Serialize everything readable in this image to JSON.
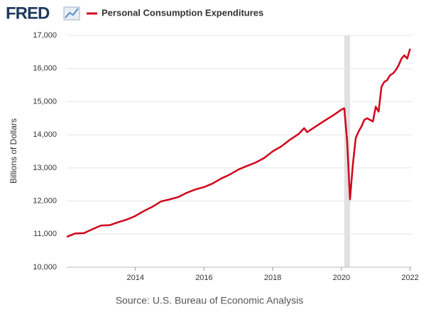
{
  "logo": "FRED",
  "chart_data": {
    "type": "line",
    "y_label": "Billions of Dollars",
    "source": "Source: U.S. Bureau of Economic Analysis",
    "x": [
      2012,
      2012.25,
      2012.5,
      2012.75,
      2013,
      2013.25,
      2013.5,
      2013.75,
      2014,
      2014.25,
      2014.5,
      2014.75,
      2015,
      2015.25,
      2015.5,
      2015.75,
      2016,
      2016.25,
      2016.5,
      2016.75,
      2017,
      2017.25,
      2017.5,
      2017.75,
      2018,
      2018.25,
      2018.5,
      2018.75,
      2018.917,
      2019,
      2019.25,
      2019.5,
      2019.75,
      2020,
      2020.083,
      2020.167,
      2020.25,
      2020.333,
      2020.417,
      2020.5,
      2020.583,
      2020.667,
      2020.75,
      2020.833,
      2020.917,
      2021,
      2021.083,
      2021.167,
      2021.25,
      2021.333,
      2021.417,
      2021.5,
      2021.583,
      2021.667,
      2021.75,
      2021.833,
      2021.917,
      2022
    ],
    "series": [
      {
        "name": "Personal Consumption Expenditures",
        "color": "#d0021b",
        "values": [
          10920,
          11020,
          11030,
          11150,
          11260,
          11270,
          11360,
          11440,
          11550,
          11700,
          11830,
          11990,
          12050,
          12120,
          12250,
          12350,
          12420,
          12530,
          12680,
          12800,
          12950,
          13060,
          13160,
          13300,
          13500,
          13650,
          13850,
          14020,
          14200,
          14080,
          14250,
          14420,
          14580,
          14760,
          14800,
          13800,
          12050,
          13100,
          13900,
          14100,
          14250,
          14450,
          14500,
          14450,
          14400,
          14850,
          14700,
          15450,
          15600,
          15650,
          15800,
          15850,
          15950,
          16100,
          16300,
          16400,
          16300,
          16600
        ]
      }
    ],
    "recessions": [
      [
        2020.083,
        2020.25
      ]
    ],
    "xlim": [
      2012,
      2022.05
    ],
    "xticks": [
      2014,
      2016,
      2018,
      2020,
      2022
    ],
    "ylim": [
      10000,
      17000
    ],
    "yticks": [
      {
        "value": 10000,
        "label": "10,000"
      },
      {
        "value": 11000,
        "label": "11,000"
      },
      {
        "value": 12000,
        "label": "12,000"
      },
      {
        "value": 13000,
        "label": "13,000"
      },
      {
        "value": 14000,
        "label": "14,000"
      },
      {
        "value": 15000,
        "label": "15,000"
      },
      {
        "value": 16000,
        "label": "16,000"
      },
      {
        "value": 17000,
        "label": "17,000"
      }
    ],
    "grid": true
  }
}
